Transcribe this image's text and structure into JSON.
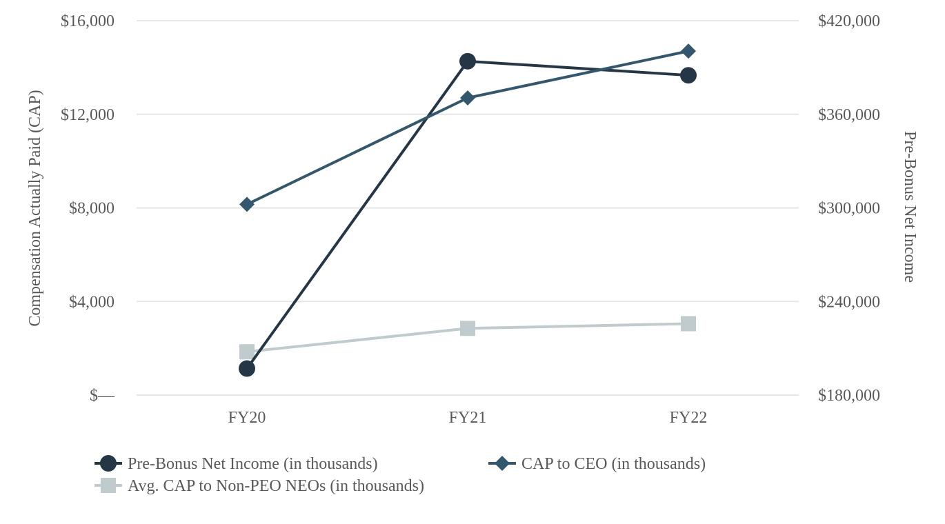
{
  "chart_data": {
    "type": "line",
    "categories": [
      "FY20",
      "FY21",
      "FY22"
    ],
    "y_left": {
      "label": "Compensation Actually Paid (CAP)",
      "range": [
        0,
        16000
      ],
      "ticks": [
        0,
        4000,
        8000,
        12000,
        16000
      ],
      "tick_labels": [
        "$—",
        "$4,000",
        "$8,000",
        "$12,000",
        "$16,000"
      ]
    },
    "y_right": {
      "label": "Pre-Bonus Net Income",
      "range": [
        180000,
        420000
      ],
      "ticks": [
        180000,
        240000,
        300000,
        360000,
        420000
      ],
      "tick_labels": [
        "$180,000",
        "$240,000",
        "$300,000",
        "$360,000",
        "$420,000"
      ]
    },
    "grid": true,
    "legend_position": "bottom",
    "series": [
      {
        "name": "Pre-Bonus Net Income (in thousands)",
        "axis": "right",
        "marker": "circle",
        "color": "#253746",
        "values": [
          197000,
          394000,
          385000
        ]
      },
      {
        "name": "CAP to CEO (in thousands)",
        "axis": "left",
        "marker": "diamond",
        "color": "#33586D",
        "values": [
          8150,
          12700,
          14700
        ]
      },
      {
        "name": "Avg. CAP to Non-PEO NEOs (in thousands)",
        "axis": "left",
        "marker": "square",
        "color": "#BFCBCD",
        "values": [
          1850,
          2850,
          3050
        ]
      }
    ]
  }
}
